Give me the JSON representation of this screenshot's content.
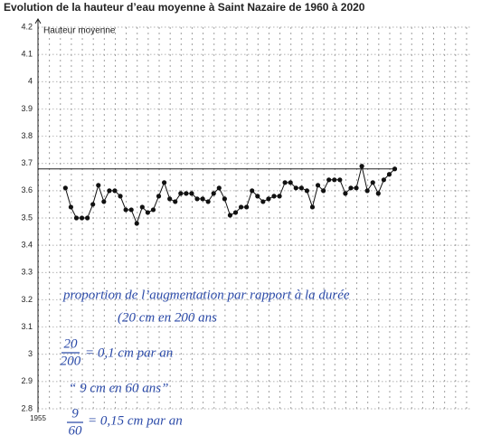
{
  "chart_data": {
    "type": "line",
    "title": "Evolution de la hauteur d’eau moyenne à Saint Nazaire de 1960 à 2020",
    "ylabel": "Hauteur moyenne",
    "x": [
      1960,
      1961,
      1962,
      1963,
      1964,
      1965,
      1966,
      1967,
      1968,
      1969,
      1970,
      1971,
      1972,
      1973,
      1974,
      1975,
      1976,
      1977,
      1978,
      1979,
      1980,
      1981,
      1982,
      1983,
      1984,
      1985,
      1986,
      1987,
      1988,
      1989,
      1990,
      1991,
      1992,
      1993,
      1994,
      1995,
      1996,
      1997,
      1998,
      1999,
      2000,
      2001,
      2002,
      2003,
      2004,
      2005,
      2006,
      2007,
      2008,
      2009,
      2010,
      2011,
      2012,
      2013,
      2014,
      2015,
      2016,
      2017,
      2018,
      2019,
      2020
    ],
    "series": [
      {
        "name": "Hauteur moyenne",
        "color": "#111111",
        "values": [
          3.61,
          3.54,
          3.5,
          3.5,
          3.5,
          3.55,
          3.62,
          3.56,
          3.6,
          3.6,
          3.58,
          3.53,
          3.53,
          3.48,
          3.54,
          3.52,
          3.53,
          3.58,
          3.63,
          3.57,
          3.56,
          3.59,
          3.59,
          3.59,
          3.57,
          3.57,
          3.56,
          3.59,
          3.61,
          3.57,
          3.51,
          3.52,
          3.54,
          3.54,
          3.6,
          3.58,
          3.56,
          3.57,
          3.58,
          3.58,
          3.63,
          3.63,
          3.61,
          3.61,
          3.6,
          3.54,
          3.62,
          3.6,
          3.64,
          3.64,
          3.64,
          3.59,
          3.61,
          3.61,
          3.69,
          3.6,
          3.63,
          3.59,
          3.64,
          3.66,
          3.68
        ]
      }
    ],
    "hline": 3.68,
    "xlim": [
      1955,
      2034
    ],
    "xticks": [
      1955
    ],
    "ylim": [
      2.8,
      4.2
    ],
    "yticks": [
      2.8,
      2.9,
      3,
      3.1,
      3.2,
      3.3,
      3.4,
      3.5,
      3.6,
      3.7,
      3.8,
      3.9,
      4,
      4.1,
      4.2
    ],
    "grid": true,
    "annotations": [
      "proportion de l’augmentation par rapport à la durée",
      "(20 cm en 200 ans",
      "20",
      "200",
      "= 0,1 cm par an",
      "“ 9 cm en 60 ans”",
      "9",
      "60",
      "= 0,15 cm par an"
    ],
    "annotation_color": "#2b4aa8"
  }
}
